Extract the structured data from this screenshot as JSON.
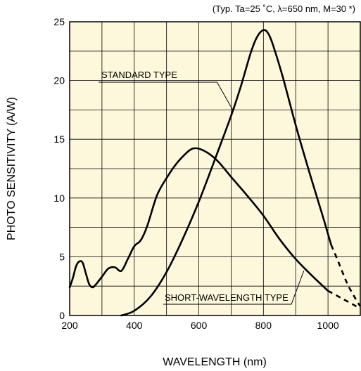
{
  "chart_data": {
    "type": "line",
    "note": "(Typ. Ta=25 ˚C, λ=650 nm, M=30 *)",
    "xlabel": "WAVELENGTH (nm)",
    "ylabel": "PHOTO SENSITIVITY (A/W)",
    "xlim": [
      200,
      1100
    ],
    "ylim": [
      0,
      25
    ],
    "x_ticks": [
      200,
      400,
      600,
      800,
      1000
    ],
    "y_ticks": [
      0,
      5,
      10,
      15,
      20,
      25
    ],
    "grid": true,
    "plot_background": "#fdf8dc",
    "series": [
      {
        "name": "STANDARD TYPE",
        "points": [
          [
            360,
            0
          ],
          [
            400,
            0.4
          ],
          [
            450,
            1.6
          ],
          [
            500,
            3.7
          ],
          [
            550,
            6.5
          ],
          [
            600,
            9.7
          ],
          [
            650,
            13.3
          ],
          [
            700,
            17.0
          ],
          [
            730,
            19.5
          ],
          [
            760,
            22.3
          ],
          [
            780,
            23.7
          ],
          [
            800,
            24.3
          ],
          [
            815,
            24.0
          ],
          [
            830,
            23.0
          ],
          [
            860,
            20.3
          ],
          [
            900,
            16.2
          ],
          [
            940,
            12.4
          ],
          [
            980,
            8.8
          ],
          [
            1010,
            6.0
          ]
        ],
        "dashed_points": [
          [
            1010,
            6.0
          ],
          [
            1030,
            4.7
          ],
          [
            1060,
            2.7
          ],
          [
            1090,
            1.2
          ],
          [
            1100,
            0.8
          ]
        ]
      },
      {
        "name": "SHORT-WAVELENGTH TYPE",
        "points": [
          [
            200,
            2.4
          ],
          [
            210,
            3.2
          ],
          [
            220,
            4.2
          ],
          [
            230,
            4.6
          ],
          [
            240,
            4.5
          ],
          [
            250,
            3.6
          ],
          [
            260,
            2.7
          ],
          [
            270,
            2.4
          ],
          [
            280,
            2.6
          ],
          [
            300,
            3.3
          ],
          [
            320,
            4.0
          ],
          [
            340,
            4.1
          ],
          [
            360,
            3.8
          ],
          [
            380,
            4.8
          ],
          [
            400,
            5.9
          ],
          [
            420,
            6.4
          ],
          [
            440,
            7.6
          ],
          [
            470,
            10.2
          ],
          [
            500,
            11.7
          ],
          [
            530,
            12.9
          ],
          [
            560,
            13.8
          ],
          [
            580,
            14.2
          ],
          [
            600,
            14.2
          ],
          [
            630,
            13.8
          ],
          [
            660,
            13.1
          ],
          [
            700,
            11.8
          ],
          [
            750,
            10.2
          ],
          [
            800,
            8.5
          ],
          [
            850,
            6.5
          ],
          [
            900,
            4.8
          ],
          [
            950,
            3.4
          ],
          [
            1000,
            2.1
          ]
        ],
        "dashed_points": [
          [
            1000,
            2.1
          ],
          [
            1040,
            1.5
          ],
          [
            1080,
            0.9
          ],
          [
            1100,
            0.6
          ]
        ]
      }
    ],
    "annotations": [
      {
        "text": "STANDARD TYPE",
        "points_to": [
          705,
          17.5
        ]
      },
      {
        "text": "SHORT-WAVELENGTH TYPE",
        "points_to": [
          925,
          3.8
        ]
      }
    ]
  }
}
